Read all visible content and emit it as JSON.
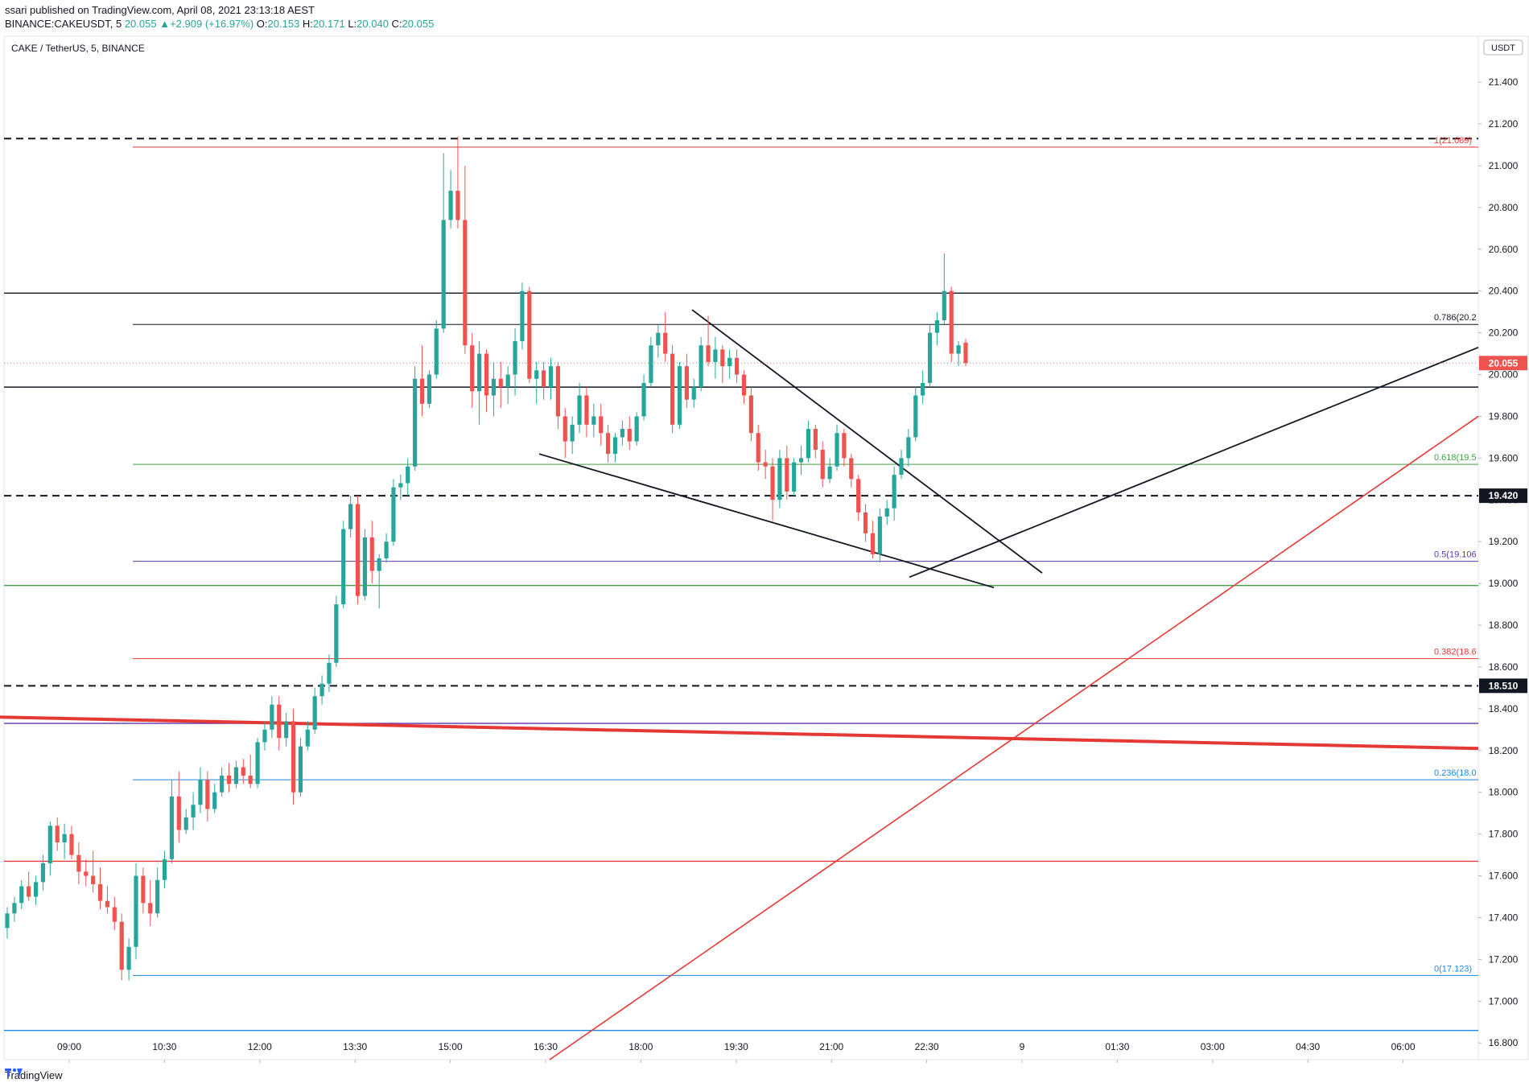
{
  "header": {
    "published": "ssari published on TradingView.com, April 08, 2021 23:13:18 AEST",
    "symbol_line": "BINANCE:CAKEUSDT, 5",
    "last": "20.055",
    "change": "+2.909 (+16.97%)",
    "ohlc_o_label": "O:",
    "ohlc_o": "20.153",
    "ohlc_h_label": "H:",
    "ohlc_h": "20.171",
    "ohlc_l_label": "L:",
    "ohlc_l": "20.040",
    "ohlc_c_label": "C:",
    "ohlc_c": "20.055"
  },
  "legend_title": "CAKE / TetherUS, 5, BINANCE",
  "currency_badge": "USDT",
  "footer": {
    "brand": "TradingView"
  },
  "colors": {
    "up": "#26a69a",
    "down": "#ef5350",
    "fib_red": "#e53935",
    "fib_green": "#43a047",
    "fib_purple": "#5e35b1",
    "fib_blue": "#1e88e5",
    "black": "#131722"
  },
  "chart_data": {
    "type": "candlestick",
    "title": "CAKE / TetherUS, 5, BINANCE",
    "ylim": [
      16.72,
      21.62
    ],
    "y_ticks": [
      "16.800",
      "17.000",
      "17.200",
      "17.400",
      "17.600",
      "17.800",
      "18.000",
      "18.200",
      "18.400",
      "18.600",
      "18.800",
      "19.000",
      "19.200",
      "19.400",
      "19.600",
      "19.800",
      "20.000",
      "20.200",
      "20.400",
      "20.600",
      "20.800",
      "21.000",
      "21.200",
      "21.400"
    ],
    "x_ticks": [
      "09:00",
      "10:30",
      "12:00",
      "13:30",
      "15:00",
      "16:30",
      "18:00",
      "19:30",
      "21:00",
      "22:30",
      "9",
      "01:30",
      "03:00",
      "04:30",
      "06:00"
    ],
    "price_labels": [
      {
        "value": 20.055,
        "text": "20.055",
        "style": "last"
      },
      {
        "value": 19.42,
        "text": "19.420",
        "style": "dark"
      },
      {
        "value": 18.51,
        "text": "18.510",
        "style": "dark"
      }
    ],
    "fib_levels": [
      {
        "ratio_text": "1(21.089)",
        "value": 21.089,
        "color": "#e53935"
      },
      {
        "ratio_text": "0.786(20.2",
        "value": 20.24,
        "color": "#131722"
      },
      {
        "ratio_text": "0.618(19.5",
        "value": 19.57,
        "color": "#43a047"
      },
      {
        "ratio_text": "0.5(19.106",
        "value": 19.106,
        "color": "#5e35b1"
      },
      {
        "ratio_text": "0.382(18.6",
        "value": 18.64,
        "color": "#e53935"
      },
      {
        "ratio_text": "0.236(18.0",
        "value": 18.06,
        "color": "#1e88e5"
      },
      {
        "ratio_text": "0(17.123)",
        "value": 17.123,
        "color": "#1e88e5"
      }
    ],
    "horizontal_lines": [
      {
        "value": 21.13,
        "style": "dashed",
        "color": "#131722"
      },
      {
        "value": 20.39,
        "style": "solid",
        "color": "#131722"
      },
      {
        "value": 19.94,
        "style": "solid",
        "color": "#131722"
      },
      {
        "value": 19.42,
        "style": "dashed",
        "color": "#131722"
      },
      {
        "value": 18.99,
        "style": "solid",
        "color": "#43a047"
      },
      {
        "value": 18.51,
        "style": "dashed",
        "color": "#131722"
      },
      {
        "value": 18.33,
        "style": "solid",
        "color": "#5e35b1"
      },
      {
        "value": 17.67,
        "style": "solid",
        "color": "#e53935"
      },
      {
        "value": 16.86,
        "style": "solid",
        "color": "#1e88e5"
      }
    ],
    "candles": [
      {
        "o": 17.35,
        "h": 17.45,
        "l": 17.3,
        "c": 17.42
      },
      {
        "o": 17.42,
        "h": 17.5,
        "l": 17.38,
        "c": 17.47
      },
      {
        "o": 17.47,
        "h": 17.58,
        "l": 17.44,
        "c": 17.55
      },
      {
        "o": 17.55,
        "h": 17.62,
        "l": 17.48,
        "c": 17.5
      },
      {
        "o": 17.5,
        "h": 17.6,
        "l": 17.46,
        "c": 17.57
      },
      {
        "o": 17.57,
        "h": 17.7,
        "l": 17.53,
        "c": 17.66
      },
      {
        "o": 17.66,
        "h": 17.86,
        "l": 17.6,
        "c": 17.84
      },
      {
        "o": 17.84,
        "h": 17.88,
        "l": 17.72,
        "c": 17.76
      },
      {
        "o": 17.76,
        "h": 17.85,
        "l": 17.68,
        "c": 17.8
      },
      {
        "o": 17.8,
        "h": 17.84,
        "l": 17.68,
        "c": 17.7
      },
      {
        "o": 17.7,
        "h": 17.76,
        "l": 17.56,
        "c": 17.62
      },
      {
        "o": 17.62,
        "h": 17.68,
        "l": 17.55,
        "c": 17.6
      },
      {
        "o": 17.6,
        "h": 17.72,
        "l": 17.52,
        "c": 17.56
      },
      {
        "o": 17.56,
        "h": 17.64,
        "l": 17.44,
        "c": 17.48
      },
      {
        "o": 17.48,
        "h": 17.55,
        "l": 17.42,
        "c": 17.45
      },
      {
        "o": 17.45,
        "h": 17.5,
        "l": 17.34,
        "c": 17.38
      },
      {
        "o": 17.38,
        "h": 17.42,
        "l": 17.1,
        "c": 17.15
      },
      {
        "o": 17.15,
        "h": 17.3,
        "l": 17.1,
        "c": 17.26
      },
      {
        "o": 17.26,
        "h": 17.66,
        "l": 17.2,
        "c": 17.6
      },
      {
        "o": 17.6,
        "h": 17.64,
        "l": 17.42,
        "c": 17.47
      },
      {
        "o": 17.47,
        "h": 17.58,
        "l": 17.36,
        "c": 17.42
      },
      {
        "o": 17.42,
        "h": 17.64,
        "l": 17.4,
        "c": 17.58
      },
      {
        "o": 17.58,
        "h": 17.72,
        "l": 17.54,
        "c": 17.68
      },
      {
        "o": 17.68,
        "h": 18.06,
        "l": 17.66,
        "c": 17.98
      },
      {
        "o": 17.98,
        "h": 18.1,
        "l": 17.76,
        "c": 17.82
      },
      {
        "o": 17.82,
        "h": 17.92,
        "l": 17.8,
        "c": 17.88
      },
      {
        "o": 17.88,
        "h": 18.0,
        "l": 17.82,
        "c": 17.94
      },
      {
        "o": 17.94,
        "h": 18.12,
        "l": 17.9,
        "c": 18.06
      },
      {
        "o": 18.06,
        "h": 18.1,
        "l": 17.86,
        "c": 17.92
      },
      {
        "o": 17.92,
        "h": 18.04,
        "l": 17.9,
        "c": 18.0
      },
      {
        "o": 18.0,
        "h": 18.12,
        "l": 17.98,
        "c": 18.08
      },
      {
        "o": 18.08,
        "h": 18.14,
        "l": 18.0,
        "c": 18.04
      },
      {
        "o": 18.04,
        "h": 18.15,
        "l": 18.02,
        "c": 18.12
      },
      {
        "o": 18.12,
        "h": 18.16,
        "l": 18.04,
        "c": 18.08
      },
      {
        "o": 18.08,
        "h": 18.18,
        "l": 18.02,
        "c": 18.04
      },
      {
        "o": 18.04,
        "h": 18.26,
        "l": 18.02,
        "c": 18.24
      },
      {
        "o": 18.24,
        "h": 18.34,
        "l": 18.2,
        "c": 18.3
      },
      {
        "o": 18.3,
        "h": 18.46,
        "l": 18.26,
        "c": 18.42
      },
      {
        "o": 18.42,
        "h": 18.46,
        "l": 18.2,
        "c": 18.26
      },
      {
        "o": 18.26,
        "h": 18.38,
        "l": 18.22,
        "c": 18.34
      },
      {
        "o": 18.34,
        "h": 18.4,
        "l": 17.94,
        "c": 18.0
      },
      {
        "o": 18.0,
        "h": 18.26,
        "l": 17.98,
        "c": 18.22
      },
      {
        "o": 18.22,
        "h": 18.34,
        "l": 18.2,
        "c": 18.3
      },
      {
        "o": 18.3,
        "h": 18.5,
        "l": 18.28,
        "c": 18.46
      },
      {
        "o": 18.46,
        "h": 18.56,
        "l": 18.42,
        "c": 18.52
      },
      {
        "o": 18.52,
        "h": 18.66,
        "l": 18.48,
        "c": 18.62
      },
      {
        "o": 18.62,
        "h": 18.94,
        "l": 18.6,
        "c": 18.9
      },
      {
        "o": 18.9,
        "h": 19.3,
        "l": 18.88,
        "c": 19.26
      },
      {
        "o": 19.26,
        "h": 19.42,
        "l": 19.22,
        "c": 19.38
      },
      {
        "o": 19.38,
        "h": 19.42,
        "l": 18.9,
        "c": 18.94
      },
      {
        "o": 18.94,
        "h": 19.26,
        "l": 18.92,
        "c": 19.22
      },
      {
        "o": 19.22,
        "h": 19.3,
        "l": 19.0,
        "c": 19.06
      },
      {
        "o": 19.06,
        "h": 19.14,
        "l": 18.88,
        "c": 19.12
      },
      {
        "o": 19.12,
        "h": 19.24,
        "l": 19.1,
        "c": 19.2
      },
      {
        "o": 19.2,
        "h": 19.5,
        "l": 19.18,
        "c": 19.46
      },
      {
        "o": 19.46,
        "h": 19.52,
        "l": 19.4,
        "c": 19.48
      },
      {
        "o": 19.48,
        "h": 19.6,
        "l": 19.42,
        "c": 19.56
      },
      {
        "o": 19.56,
        "h": 20.04,
        "l": 19.54,
        "c": 19.98
      },
      {
        "o": 19.98,
        "h": 20.14,
        "l": 19.8,
        "c": 19.86
      },
      {
        "o": 19.86,
        "h": 20.02,
        "l": 19.84,
        "c": 20.0
      },
      {
        "o": 20.0,
        "h": 20.26,
        "l": 19.98,
        "c": 20.22
      },
      {
        "o": 20.22,
        "h": 21.06,
        "l": 20.2,
        "c": 20.74
      },
      {
        "o": 20.74,
        "h": 20.98,
        "l": 20.7,
        "c": 20.88
      },
      {
        "o": 20.88,
        "h": 21.14,
        "l": 20.7,
        "c": 20.74
      },
      {
        "o": 20.74,
        "h": 21.0,
        "l": 20.1,
        "c": 20.14
      },
      {
        "o": 20.14,
        "h": 20.2,
        "l": 19.84,
        "c": 19.92
      },
      {
        "o": 19.92,
        "h": 20.16,
        "l": 19.76,
        "c": 20.1
      },
      {
        "o": 20.1,
        "h": 20.12,
        "l": 19.82,
        "c": 19.9
      },
      {
        "o": 19.9,
        "h": 20.06,
        "l": 19.8,
        "c": 19.98
      },
      {
        "o": 19.98,
        "h": 20.06,
        "l": 19.84,
        "c": 19.94
      },
      {
        "o": 19.94,
        "h": 20.04,
        "l": 19.86,
        "c": 20.0
      },
      {
        "o": 20.0,
        "h": 20.22,
        "l": 19.9,
        "c": 20.16
      },
      {
        "o": 20.16,
        "h": 20.44,
        "l": 20.12,
        "c": 20.4
      },
      {
        "o": 20.4,
        "h": 20.42,
        "l": 19.96,
        "c": 19.98
      },
      {
        "o": 19.98,
        "h": 20.06,
        "l": 19.86,
        "c": 20.02
      },
      {
        "o": 20.02,
        "h": 20.06,
        "l": 19.88,
        "c": 19.94
      },
      {
        "o": 19.94,
        "h": 20.08,
        "l": 19.88,
        "c": 20.04
      },
      {
        "o": 20.04,
        "h": 20.06,
        "l": 19.74,
        "c": 19.8
      },
      {
        "o": 19.8,
        "h": 19.84,
        "l": 19.6,
        "c": 19.68
      },
      {
        "o": 19.68,
        "h": 19.8,
        "l": 19.62,
        "c": 19.76
      },
      {
        "o": 19.76,
        "h": 19.96,
        "l": 19.72,
        "c": 19.9
      },
      {
        "o": 19.9,
        "h": 19.94,
        "l": 19.7,
        "c": 19.76
      },
      {
        "o": 19.76,
        "h": 19.86,
        "l": 19.7,
        "c": 19.8
      },
      {
        "o": 19.8,
        "h": 19.86,
        "l": 19.66,
        "c": 19.72
      },
      {
        "o": 19.72,
        "h": 19.76,
        "l": 19.58,
        "c": 19.62
      },
      {
        "o": 19.62,
        "h": 19.72,
        "l": 19.58,
        "c": 19.7
      },
      {
        "o": 19.7,
        "h": 19.78,
        "l": 19.66,
        "c": 19.74
      },
      {
        "o": 19.74,
        "h": 19.8,
        "l": 19.64,
        "c": 19.68
      },
      {
        "o": 19.68,
        "h": 19.82,
        "l": 19.66,
        "c": 19.8
      },
      {
        "o": 19.8,
        "h": 20.0,
        "l": 19.78,
        "c": 19.96
      },
      {
        "o": 19.96,
        "h": 20.18,
        "l": 19.94,
        "c": 20.14
      },
      {
        "o": 20.14,
        "h": 20.24,
        "l": 20.08,
        "c": 20.2
      },
      {
        "o": 20.2,
        "h": 20.3,
        "l": 20.06,
        "c": 20.1
      },
      {
        "o": 20.1,
        "h": 20.14,
        "l": 19.72,
        "c": 19.76
      },
      {
        "o": 19.76,
        "h": 20.06,
        "l": 19.74,
        "c": 20.04
      },
      {
        "o": 20.04,
        "h": 20.1,
        "l": 19.84,
        "c": 19.88
      },
      {
        "o": 19.88,
        "h": 19.98,
        "l": 19.84,
        "c": 19.94
      },
      {
        "o": 19.94,
        "h": 20.18,
        "l": 19.92,
        "c": 20.14
      },
      {
        "o": 20.14,
        "h": 20.28,
        "l": 20.04,
        "c": 20.06
      },
      {
        "o": 20.06,
        "h": 20.18,
        "l": 19.98,
        "c": 20.12
      },
      {
        "o": 20.12,
        "h": 20.14,
        "l": 19.96,
        "c": 20.04
      },
      {
        "o": 20.04,
        "h": 20.12,
        "l": 19.98,
        "c": 20.08
      },
      {
        "o": 20.08,
        "h": 20.12,
        "l": 19.96,
        "c": 20.0
      },
      {
        "o": 20.0,
        "h": 20.02,
        "l": 19.86,
        "c": 19.9
      },
      {
        "o": 19.9,
        "h": 19.94,
        "l": 19.68,
        "c": 19.72
      },
      {
        "o": 19.72,
        "h": 19.76,
        "l": 19.54,
        "c": 19.58
      },
      {
        "o": 19.58,
        "h": 19.64,
        "l": 19.5,
        "c": 19.56
      },
      {
        "o": 19.56,
        "h": 19.6,
        "l": 19.3,
        "c": 19.4
      },
      {
        "o": 19.4,
        "h": 19.64,
        "l": 19.36,
        "c": 19.6
      },
      {
        "o": 19.6,
        "h": 19.66,
        "l": 19.4,
        "c": 19.44
      },
      {
        "o": 19.44,
        "h": 19.6,
        "l": 19.42,
        "c": 19.58
      },
      {
        "o": 19.58,
        "h": 19.66,
        "l": 19.52,
        "c": 19.6
      },
      {
        "o": 19.6,
        "h": 19.78,
        "l": 19.58,
        "c": 19.74
      },
      {
        "o": 19.74,
        "h": 19.76,
        "l": 19.6,
        "c": 19.64
      },
      {
        "o": 19.64,
        "h": 19.68,
        "l": 19.46,
        "c": 19.5
      },
      {
        "o": 19.5,
        "h": 19.6,
        "l": 19.48,
        "c": 19.56
      },
      {
        "o": 19.56,
        "h": 19.76,
        "l": 19.54,
        "c": 19.72
      },
      {
        "o": 19.72,
        "h": 19.74,
        "l": 19.56,
        "c": 19.6
      },
      {
        "o": 19.6,
        "h": 19.62,
        "l": 19.46,
        "c": 19.5
      },
      {
        "o": 19.5,
        "h": 19.52,
        "l": 19.3,
        "c": 19.34
      },
      {
        "o": 19.34,
        "h": 19.38,
        "l": 19.2,
        "c": 19.24
      },
      {
        "o": 19.24,
        "h": 19.3,
        "l": 19.12,
        "c": 19.14
      },
      {
        "o": 19.14,
        "h": 19.36,
        "l": 19.1,
        "c": 19.32
      },
      {
        "o": 19.32,
        "h": 19.4,
        "l": 19.28,
        "c": 19.36
      },
      {
        "o": 19.36,
        "h": 19.56,
        "l": 19.3,
        "c": 19.52
      },
      {
        "o": 19.52,
        "h": 19.64,
        "l": 19.5,
        "c": 19.6
      },
      {
        "o": 19.6,
        "h": 19.74,
        "l": 19.56,
        "c": 19.7
      },
      {
        "o": 19.7,
        "h": 19.94,
        "l": 19.68,
        "c": 19.9
      },
      {
        "o": 19.9,
        "h": 20.02,
        "l": 19.86,
        "c": 19.96
      },
      {
        "o": 19.96,
        "h": 20.24,
        "l": 19.94,
        "c": 20.2
      },
      {
        "o": 20.2,
        "h": 20.3,
        "l": 20.14,
        "c": 20.26
      },
      {
        "o": 20.26,
        "h": 20.58,
        "l": 20.24,
        "c": 20.4
      },
      {
        "o": 20.4,
        "h": 20.42,
        "l": 20.06,
        "c": 20.1
      },
      {
        "o": 20.1,
        "h": 20.16,
        "l": 20.04,
        "c": 20.14
      },
      {
        "o": 20.153,
        "h": 20.171,
        "l": 20.04,
        "c": 20.055
      }
    ]
  }
}
